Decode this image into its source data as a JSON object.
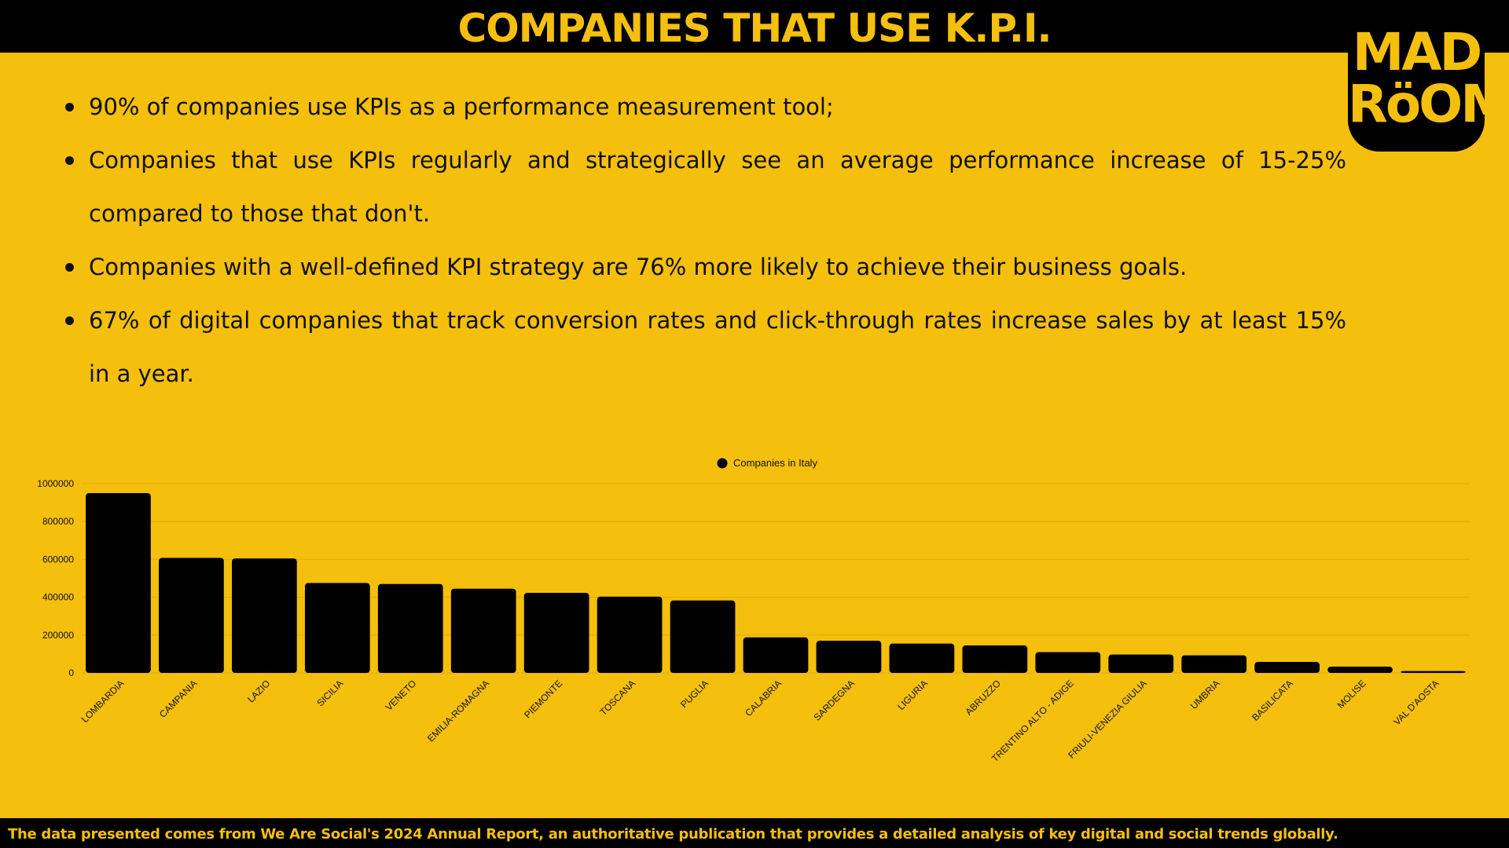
{
  "header": {
    "title": "COMPANIES THAT USE K.P.I.",
    "logo_line1": "MAD",
    "logo_line2": "RöOM"
  },
  "bullets": [
    "90% of companies use KPIs as a performance measurement tool;",
    "Companies that use KPIs regularly and strategically see an average performance increase of 15-25% compared to those that don't.",
    "Companies with a well-defined KPI strategy are 76% more likely to achieve their business goals.",
    "67% of digital companies that track conversion rates and click-through rates increase sales by at least 15% in a year."
  ],
  "footer": {
    "text": "The data presented comes from We Are Social's 2024 Annual Report, an authoritative publication that provides a detailed analysis of key digital and social trends globally."
  },
  "colors": {
    "background": "#f5bf0e",
    "bars": "#000000",
    "text": "#111111"
  },
  "chart_data": {
    "type": "bar",
    "legend": "top-center",
    "grid": true,
    "ylim": [
      0,
      1000000
    ],
    "yticks": [
      "0",
      "200000",
      "400000",
      "600000",
      "800000",
      "1000000"
    ],
    "categories": [
      "LOMBARDIA",
      "CAMPANIA",
      "LAZIO",
      "SICILIA",
      "VENETO",
      "EMILIA-ROMAGNA",
      "PIEMONTE",
      "TOSCANA",
      "PUGLIA",
      "CALABRIA",
      "SARDEGNA",
      "LIGURIA",
      "ABRUZZO",
      "TRENTINO ALTO - ADIGE",
      "FRIULI-VENEZIA GIULIA",
      "UMBRIA",
      "BASILICATA",
      "MOLISE",
      "VAL D'AOSTA"
    ],
    "series": [
      {
        "name": "Companies in Italy",
        "values": [
          950000,
          608000,
          605000,
          475000,
          470000,
          445000,
          423000,
          403000,
          383000,
          188000,
          170000,
          155000,
          145000,
          110000,
          97000,
          93000,
          58000,
          33000,
          10000
        ]
      }
    ]
  }
}
